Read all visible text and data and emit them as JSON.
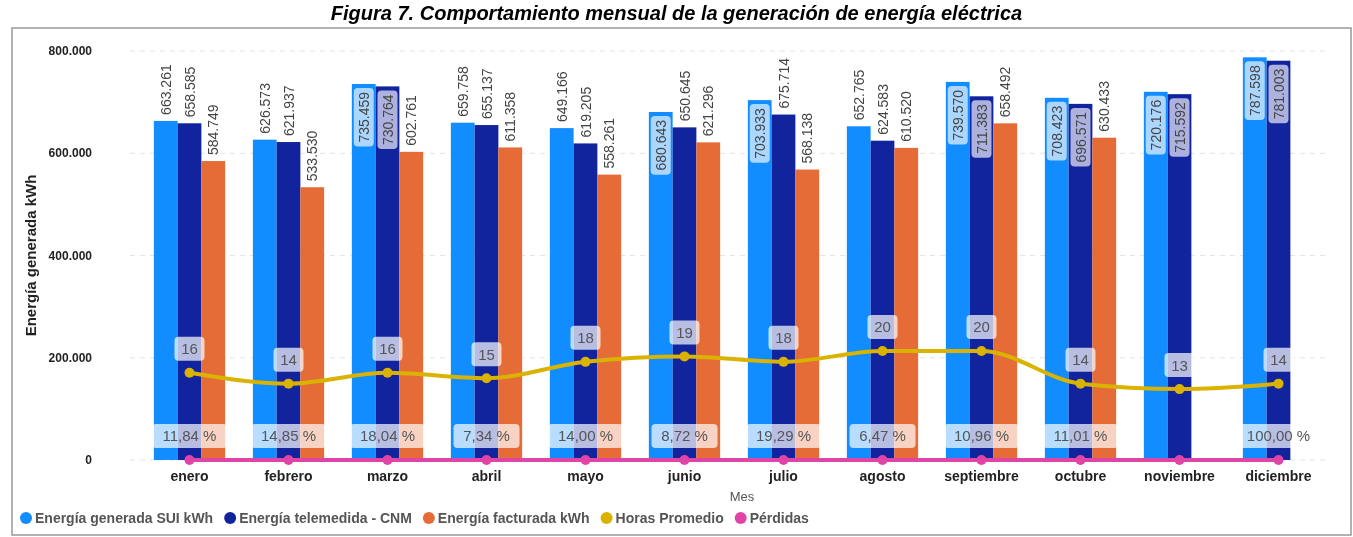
{
  "chart_data": {
    "type": "bar",
    "title": "Figura 7. Comportamiento mensual de la generación de energía eléctrica",
    "xlabel": "Mes",
    "ylabel": "Energía generada kWh",
    "categories": [
      "enero",
      "febrero",
      "marzo",
      "abril",
      "mayo",
      "junio",
      "julio",
      "agosto",
      "septiembre",
      "octubre",
      "noviembre",
      "diciembre"
    ],
    "series": [
      {
        "name": "Energía generada SUI kWh",
        "color": "#118dff",
        "values": [
          663261,
          626573,
          735459,
          659758,
          649166,
          680643,
          703933,
          652765,
          739570,
          708423,
          720176,
          787598
        ],
        "value_labels": [
          "663.261",
          "626.573",
          "735.459",
          "659.758",
          "649.166",
          "680.643",
          "703.933",
          "652.765",
          "739.570",
          "708.423",
          "720.176",
          "787.598"
        ]
      },
      {
        "name": "Energía telemedida - CNM",
        "color": "#12239e",
        "values": [
          658585,
          621937,
          730764,
          655137,
          619205,
          650645,
          675714,
          624583,
          711383,
          696571,
          715592,
          781003
        ],
        "value_labels": [
          "658.585",
          "621.937",
          "730.764",
          "655.137",
          "619.205",
          "650.645",
          "675.714",
          "624.583",
          "711.383",
          "696.571",
          "715.592",
          "781.003"
        ]
      },
      {
        "name": "Energía facturada kWh",
        "color": "#e66c37",
        "values": [
          584749,
          533530,
          602761,
          611358,
          558261,
          621296,
          568138,
          610520,
          658492,
          630433,
          null,
          null
        ],
        "value_labels": [
          "584.749",
          "533.530",
          "602.761",
          "611.358",
          "558.261",
          "621.296",
          "568.138",
          "610.520",
          "658.492",
          "630.433",
          null,
          null
        ]
      },
      {
        "name": "Horas Promedio",
        "type": "line",
        "axis": "y2",
        "color": "#d9b300",
        "values": [
          16,
          14,
          16,
          15,
          18,
          19,
          18,
          20,
          20,
          14,
          13,
          14
        ],
        "value_labels": [
          "16",
          "14",
          "16",
          "15",
          "18",
          "19",
          "18",
          "20",
          "20",
          "14",
          "13",
          "14"
        ]
      },
      {
        "name": "Pérdidas",
        "type": "line",
        "color": "#e044a7",
        "values": [
          11.84,
          14.85,
          18.04,
          7.34,
          14.0,
          8.72,
          19.29,
          6.47,
          10.96,
          11.01,
          100,
          100
        ],
        "value_labels": [
          "11,84 %",
          "14,85 %",
          "18,04 %",
          "7,34 %",
          "14,00 %",
          "8,72 %",
          "19,29 %",
          "6,47 %",
          "10,96 %",
          "11,01 %",
          null,
          "100,00 %"
        ]
      }
    ],
    "ylim": [
      0,
      800000
    ],
    "yticks": [
      {
        "value": 0,
        "label": "0"
      },
      {
        "value": 200000,
        "label": "200.000"
      },
      {
        "value": 400000,
        "label": "400.000"
      },
      {
        "value": 600000,
        "label": "600.000"
      },
      {
        "value": 800000,
        "label": "800.000"
      }
    ],
    "y2lim": [
      0,
      75
    ],
    "tick_labels": "xy",
    "grid": "y",
    "legend": "bottom left",
    "marker": "circle"
  }
}
